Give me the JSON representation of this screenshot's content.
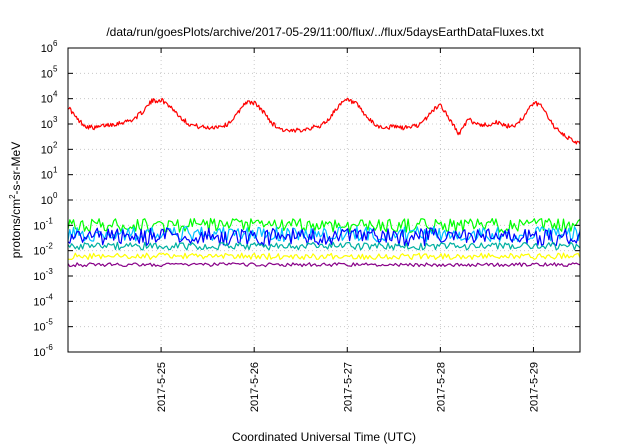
{
  "chart_data": {
    "type": "line",
    "title": "/data/run/goesPlots/archive/2017-05-29/11:00/flux/../flux/5daysEarthDataFluxes.txt",
    "xlabel": "Coordinated Universal Time (UTC)",
    "ylabel": "protons/cm²-s-sr-MeV",
    "ylabel_base": "protons/cm",
    "ylabel_sup": "2",
    "ylabel_rest": "-s-sr-MeV",
    "yscale": "log",
    "ylim": [
      1e-06,
      1000000.0
    ],
    "xlim": [
      0,
      5.5
    ],
    "x_unit": "days since 2017-05-24 00:00 UTC",
    "x_ticks": [
      {
        "x": 1,
        "label": "2017-5-25"
      },
      {
        "x": 2,
        "label": "2017-5-26"
      },
      {
        "x": 3,
        "label": "2017-5-27"
      },
      {
        "x": 4,
        "label": "2017-5-28"
      },
      {
        "x": 5,
        "label": "2017-5-29"
      }
    ],
    "y_ticks": [
      {
        "exp": "6",
        "base": "10"
      },
      {
        "exp": "5",
        "base": "10"
      },
      {
        "exp": "4",
        "base": "10"
      },
      {
        "exp": "3",
        "base": "10"
      },
      {
        "exp": "2",
        "base": "10"
      },
      {
        "exp": "1",
        "base": "10"
      },
      {
        "exp": "0",
        "base": "10"
      },
      {
        "exp": "-1",
        "base": "10"
      },
      {
        "exp": "-2",
        "base": "10"
      },
      {
        "exp": "-3",
        "base": "10"
      },
      {
        "exp": "-4",
        "base": "10"
      },
      {
        "exp": "-5",
        "base": "10"
      },
      {
        "exp": "-6",
        "base": "10"
      }
    ],
    "grid": true,
    "legend": "none",
    "series": [
      {
        "color": "#ff0000",
        "x": [
          0.0,
          0.1,
          0.2,
          0.3,
          0.4,
          0.5,
          0.6,
          0.7,
          0.8,
          0.9,
          1.0,
          1.1,
          1.2,
          1.3,
          1.4,
          1.5,
          1.6,
          1.7,
          1.8,
          1.9,
          2.0,
          2.1,
          2.2,
          2.3,
          2.4,
          2.5,
          2.6,
          2.7,
          2.8,
          2.9,
          3.0,
          3.1,
          3.2,
          3.3,
          3.4,
          3.5,
          3.6,
          3.7,
          3.8,
          3.9,
          4.0,
          4.1,
          4.2,
          4.3,
          4.4,
          4.5,
          4.6,
          4.7,
          4.8,
          4.9,
          5.0,
          5.1,
          5.2,
          5.3,
          5.4,
          5.5
        ],
        "y": [
          5000,
          1500,
          800,
          700,
          900,
          1000,
          1200,
          1500,
          3000,
          8000,
          9000,
          5000,
          2000,
          1000,
          800,
          700,
          800,
          900,
          2000,
          7000,
          7000,
          3000,
          1000,
          600,
          500,
          600,
          700,
          800,
          1500,
          5000,
          9000,
          6000,
          2000,
          900,
          700,
          800,
          700,
          800,
          1000,
          3000,
          6000,
          1500,
          400,
          1500,
          1000,
          900,
          1200,
          800,
          900,
          2000,
          7000,
          5000,
          1000,
          400,
          250,
          160
        ]
      },
      {
        "color": "#00ff00",
        "base": 0.1,
        "amp": 0.55
      },
      {
        "color": "#00c0ff",
        "base": 0.045,
        "amp": 0.6
      },
      {
        "color": "#0000ff",
        "base": 0.035,
        "amp": 0.7
      },
      {
        "color": "#00b0a0",
        "base": 0.015,
        "amp": 0.3
      },
      {
        "color": "#ffff00",
        "base": 0.006,
        "amp": 0.25
      },
      {
        "color": "#880088",
        "base": 0.0028,
        "amp": 0.15
      }
    ]
  }
}
